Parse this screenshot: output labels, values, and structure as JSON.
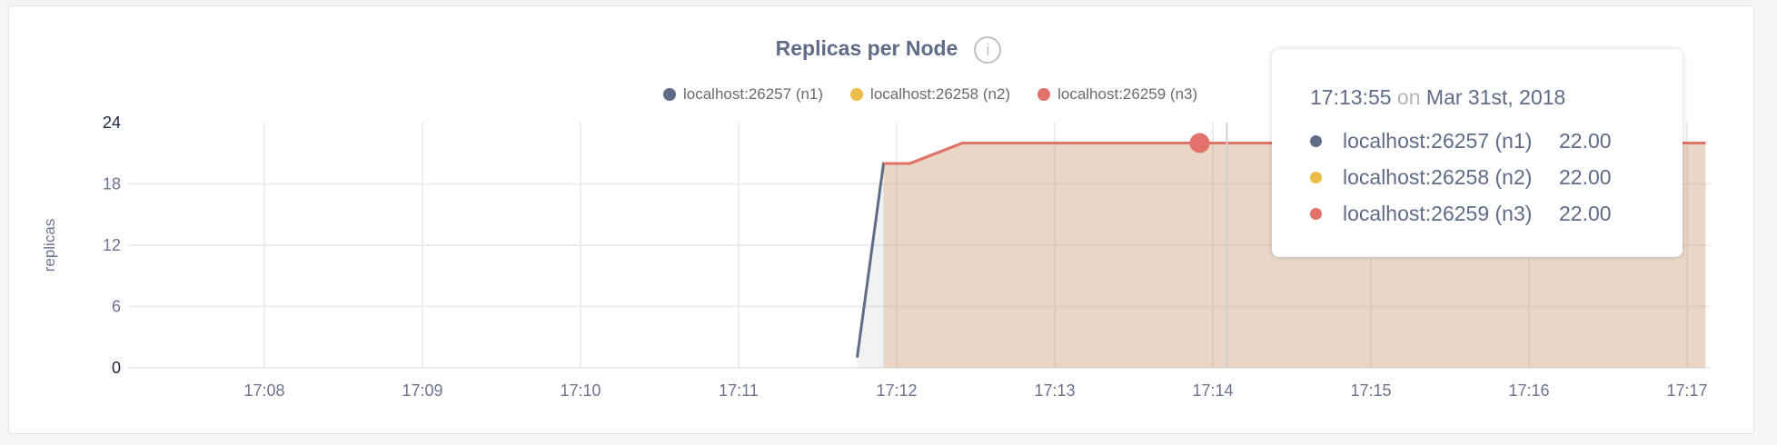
{
  "chart_data": {
    "type": "area",
    "title": "Replicas per Node",
    "ylabel": "replicas",
    "xlabel": "",
    "ylim": [
      0,
      24
    ],
    "yticks": [
      0,
      6,
      12,
      18,
      24
    ],
    "xlim": [
      "17:07:00",
      "17:17:12"
    ],
    "xticks": [
      "17:08",
      "17:09",
      "17:10",
      "17:11",
      "17:12",
      "17:13",
      "17:14",
      "17:15",
      "17:16",
      "17:17"
    ],
    "grid": true,
    "legend_position": "top",
    "series": [
      {
        "name": "localhost:26257 (n1)",
        "color": "#5f6c87",
        "points": [
          [
            "17:11:45",
            1
          ],
          [
            "17:11:55",
            20
          ],
          [
            "17:12:05",
            20
          ],
          [
            "17:12:25",
            22
          ],
          [
            "17:17:07",
            22
          ]
        ]
      },
      {
        "name": "localhost:26258 (n2)",
        "color": "#ebbd47",
        "points": [
          [
            "17:11:55",
            20
          ],
          [
            "17:12:05",
            20
          ],
          [
            "17:12:25",
            22
          ],
          [
            "17:17:07",
            22
          ]
        ]
      },
      {
        "name": "localhost:26259 (n3)",
        "color": "#e3726b",
        "points": [
          [
            "17:11:55",
            20
          ],
          [
            "17:12:05",
            20
          ],
          [
            "17:12:25",
            22
          ],
          [
            "17:17:07",
            22
          ]
        ]
      }
    ],
    "hover": {
      "time": "17:13:55",
      "value": 22
    }
  },
  "header": {
    "title": "Replicas per Node",
    "info_icon": "info-circle-icon",
    "info_glyph": "i"
  },
  "tooltip": {
    "time": "17:13:55",
    "on": "on",
    "date": "Mar 31st, 2018",
    "rows": [
      {
        "label": "localhost:26257 (n1)",
        "value": "22.00",
        "color": "#5f6c87"
      },
      {
        "label": "localhost:26258 (n2)",
        "value": "22.00",
        "color": "#ebbd47"
      },
      {
        "label": "localhost:26259 (n3)",
        "value": "22.00",
        "color": "#e3726b"
      }
    ]
  }
}
